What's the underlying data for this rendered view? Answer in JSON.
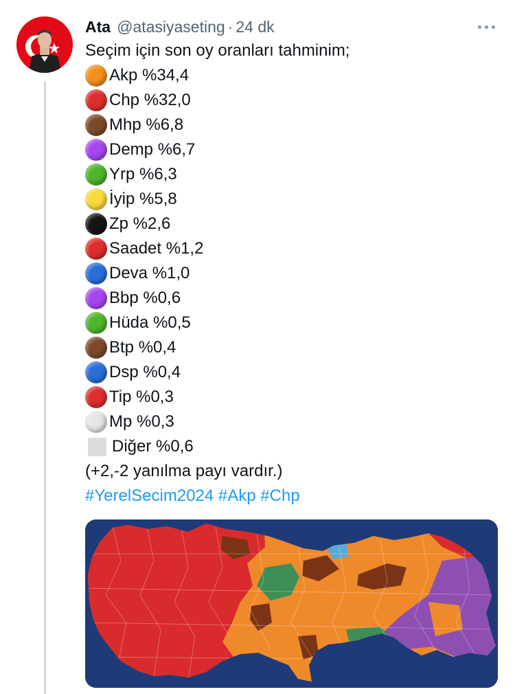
{
  "tweet": {
    "author_name": "Ata",
    "handle": "@atasiyaseting",
    "separator": "·",
    "time": "24 dk",
    "intro": "Seçim için son oy oranları tahminim;",
    "parties": [
      {
        "label": "Akp %34,4",
        "color": "#f4901e"
      },
      {
        "label": "Chp %32,0",
        "color": "#dd2e2e"
      },
      {
        "label": "Mhp %6,8",
        "color": "#7b4a2a"
      },
      {
        "label": "Demp %6,7",
        "color": "#a646f0"
      },
      {
        "label": "Yrp %6,3",
        "color": "#4fb52c"
      },
      {
        "label": "İyip %5,8",
        "color": "#fbd93d"
      },
      {
        "label": "Zp %2,6",
        "color": "#151515"
      },
      {
        "label": "Saadet %1,2",
        "color": "#dd2e2e"
      },
      {
        "label": "Deva %1,0",
        "color": "#2a6ed9"
      },
      {
        "label": "Bbp %0,6",
        "color": "#a646f0"
      },
      {
        "label": "Hüda %0,5",
        "color": "#4fb52c"
      },
      {
        "label": "Btp %0,4",
        "color": "#7b4a2a"
      },
      {
        "label": "Dsp %0,4",
        "color": "#2a6ed9"
      },
      {
        "label": "Tip %0,3",
        "color": "#dd2e2e"
      },
      {
        "label": "Mp %0,3",
        "color": "#e6e6e6"
      },
      {
        "label": "Diğer %0,6",
        "color": "#dcdcdc",
        "shape": "square"
      }
    ],
    "note": "(+2,-2 yanılma payı vardır.)",
    "hashtags": [
      "#YerelSecim2024",
      "#Akp",
      "#Chp"
    ]
  },
  "map": {
    "background": "#1e3a78",
    "colors": {
      "akp": "#ef8a2b",
      "chp": "#d92b2b",
      "mhp": "#7a3415",
      "dem": "#8e4fb3",
      "yrp": "#3e8f57",
      "iyi": "#5aa9d6"
    }
  }
}
